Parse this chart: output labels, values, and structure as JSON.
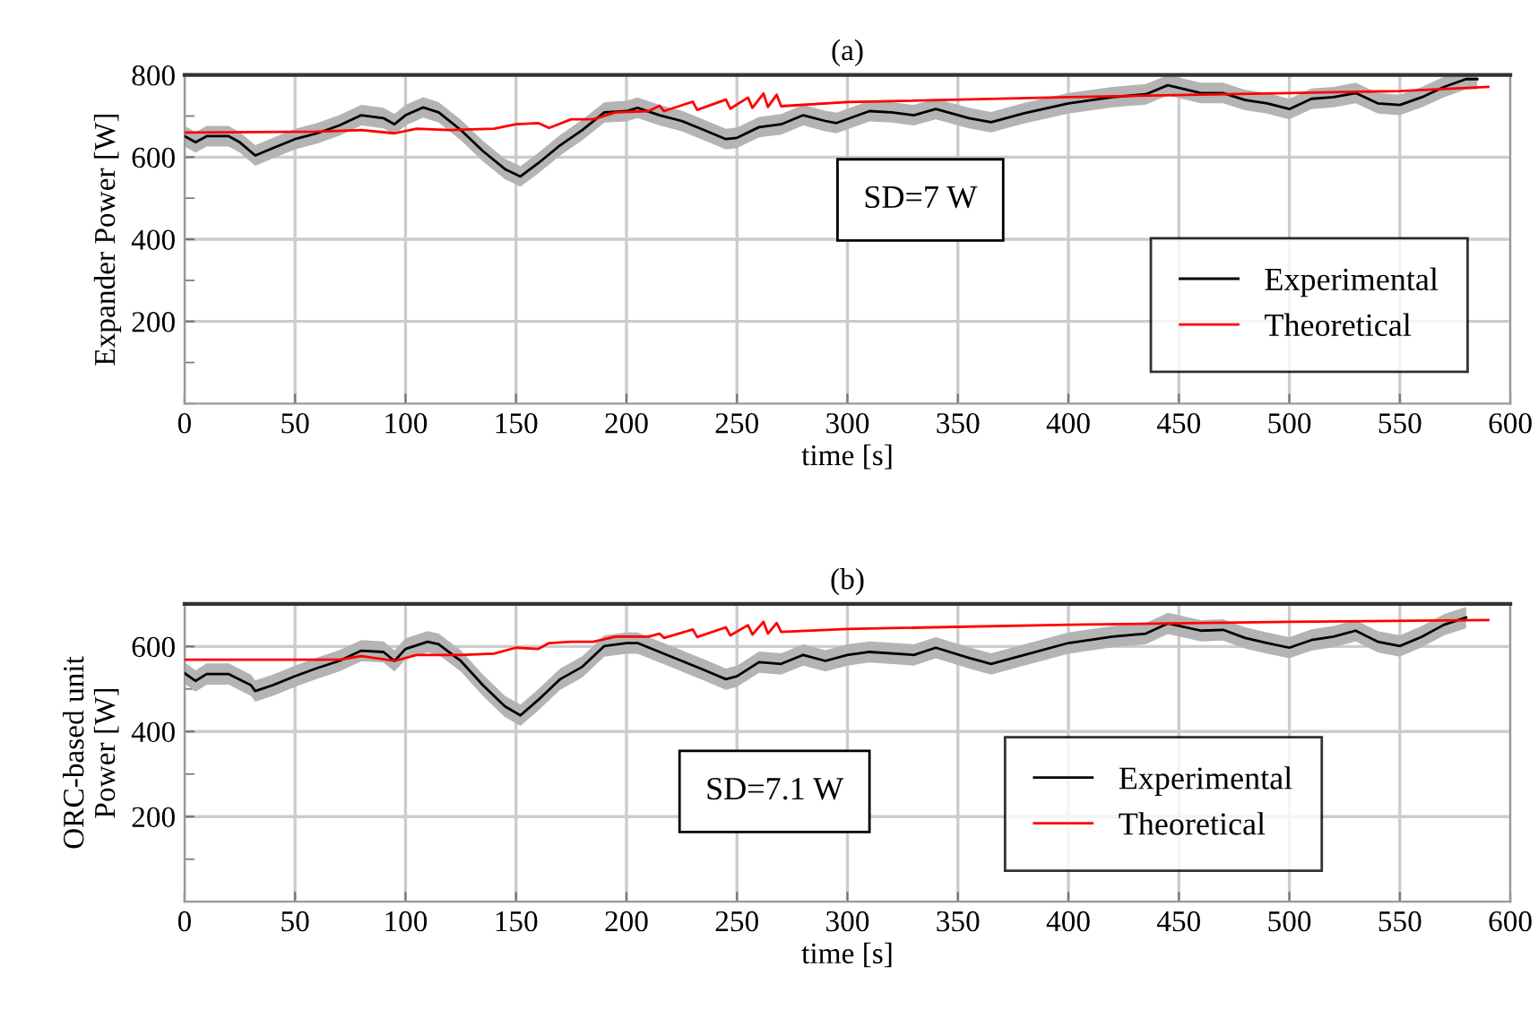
{
  "chart_data": [
    {
      "type": "line",
      "title": "(a)",
      "xlabel": "time [s]",
      "ylabel": "Expander Power [W]",
      "xlim": [
        0,
        600
      ],
      "xticks": [
        0,
        50,
        100,
        150,
        200,
        250,
        300,
        350,
        400,
        450,
        500,
        550,
        600
      ],
      "ylim": [
        0,
        800
      ],
      "yticks": [
        {
          "value": 0,
          "label": null
        },
        {
          "value": 100,
          "label": null
        },
        200,
        {
          "value": 300,
          "label": null
        },
        400,
        {
          "value": 500,
          "label": null
        },
        600,
        {
          "value": 700,
          "label": null
        },
        800
      ],
      "grid": true,
      "legend": "right",
      "annotations": [
        "SD=7 W"
      ],
      "series": [
        {
          "name": "Experimental",
          "color": "#000000",
          "x": [
            0,
            5,
            10,
            20,
            25,
            32,
            40,
            50,
            60,
            70,
            80,
            90,
            95,
            100,
            108,
            115,
            125,
            135,
            145,
            152,
            160,
            170,
            180,
            190,
            200,
            205,
            215,
            225,
            235,
            245,
            250,
            260,
            270,
            280,
            290,
            295,
            310,
            320,
            330,
            340,
            355,
            365,
            380,
            400,
            420,
            435,
            445,
            460,
            470,
            480,
            490,
            500,
            510,
            520,
            530,
            540,
            550,
            560,
            570,
            580,
            585
          ],
          "values": [
            651,
            636,
            651,
            651,
            636,
            604,
            622,
            644,
            658,
            677,
            702,
            695,
            680,
            702,
            721,
            709,
            666,
            615,
            571,
            553,
            585,
            629,
            666,
            709,
            712,
            720,
            702,
            688,
            666,
            644,
            647,
            673,
            680,
            702,
            688,
            683,
            712,
            709,
            702,
            717,
            695,
            685,
            707,
            731,
            746,
            753,
            775,
            756,
            756,
            739,
            731,
            717,
            742,
            746,
            756,
            731,
            727,
            746,
            771,
            790,
            790
          ],
          "lower": [
            626,
            611,
            626,
            626,
            611,
            579,
            597,
            619,
            633,
            652,
            677,
            670,
            655,
            677,
            696,
            684,
            641,
            590,
            546,
            528,
            560,
            604,
            641,
            684,
            687,
            695,
            677,
            663,
            641,
            619,
            622,
            648,
            655,
            677,
            663,
            658,
            687,
            684,
            677,
            692,
            670,
            660,
            682,
            706,
            721,
            728,
            750,
            731,
            731,
            714,
            706,
            692,
            717,
            721,
            731,
            706,
            702,
            721,
            746,
            765,
            765
          ],
          "upper": [
            676,
            661,
            676,
            676,
            661,
            629,
            647,
            669,
            683,
            702,
            727,
            720,
            705,
            727,
            746,
            734,
            691,
            640,
            596,
            578,
            610,
            654,
            691,
            734,
            737,
            745,
            727,
            713,
            691,
            669,
            672,
            698,
            705,
            727,
            713,
            708,
            737,
            734,
            727,
            742,
            720,
            710,
            732,
            756,
            771,
            778,
            800,
            781,
            781,
            764,
            756,
            742,
            767,
            771,
            781,
            756,
            752,
            771,
            796,
            800,
            800
          ]
        },
        {
          "name": "Theoretical",
          "color": "#ff0000",
          "x": [
            0,
            60,
            80,
            95,
            105,
            120,
            140,
            150,
            160,
            165,
            175,
            185,
            195,
            210,
            215,
            217,
            230,
            232,
            245,
            247,
            255,
            257,
            262,
            264,
            268,
            270,
            300,
            400,
            500,
            550,
            590
          ],
          "values": [
            660,
            662,
            666,
            658,
            669,
            666,
            669,
            680,
            683,
            671,
            692,
            692,
            709,
            712,
            725,
            712,
            735,
            715,
            740,
            718,
            745,
            720,
            755,
            722,
            752,
            724,
            734,
            746,
            756,
            761,
            771
          ]
        }
      ]
    },
    {
      "type": "line",
      "title": "(b)",
      "xlabel": "time [s]",
      "ylabel": "ORC-based unit\nPower [W]",
      "xlim": [
        0,
        600
      ],
      "xticks": [
        0,
        50,
        100,
        150,
        200,
        250,
        300,
        350,
        400,
        450,
        500,
        550,
        600
      ],
      "ylim": [
        0,
        700
      ],
      "yticks": [
        {
          "value": 0,
          "label": null
        },
        {
          "value": 100,
          "label": null
        },
        200,
        {
          "value": 300,
          "label": null
        },
        400,
        {
          "value": 500,
          "label": null
        },
        600
      ],
      "grid": true,
      "legend": "lower right",
      "annotations": [
        "SD=7.1 W"
      ],
      "series": [
        {
          "name": "Experimental",
          "color": "#000000",
          "x": [
            0,
            5,
            10,
            20,
            30,
            32,
            40,
            50,
            60,
            70,
            80,
            90,
            95,
            100,
            110,
            115,
            125,
            135,
            145,
            152,
            160,
            170,
            180,
            190,
            200,
            205,
            215,
            225,
            235,
            245,
            250,
            260,
            270,
            280,
            290,
            300,
            310,
            330,
            340,
            355,
            365,
            380,
            400,
            420,
            435,
            445,
            460,
            470,
            480,
            490,
            500,
            510,
            520,
            530,
            540,
            550,
            560,
            570,
            580
          ],
          "values": [
            537,
            519,
            535,
            535,
            509,
            495,
            509,
            530,
            549,
            566,
            590,
            587,
            566,
            594,
            611,
            605,
            566,
            509,
            459,
            438,
            474,
            523,
            552,
            601,
            608,
            608,
            587,
            566,
            545,
            523,
            530,
            563,
            559,
            580,
            566,
            580,
            587,
            580,
            597,
            573,
            559,
            580,
            608,
            623,
            630,
            654,
            637,
            639,
            620,
            608,
            597,
            615,
            623,
            637,
            611,
            601,
            623,
            651,
            668
          ],
          "lower": [
            512,
            494,
            510,
            510,
            484,
            470,
            484,
            505,
            524,
            541,
            565,
            562,
            541,
            569,
            586,
            580,
            541,
            484,
            434,
            413,
            449,
            498,
            527,
            576,
            583,
            583,
            562,
            541,
            520,
            498,
            505,
            538,
            534,
            555,
            541,
            555,
            562,
            555,
            572,
            548,
            534,
            555,
            583,
            598,
            605,
            629,
            612,
            614,
            595,
            583,
            572,
            590,
            598,
            612,
            586,
            576,
            598,
            626,
            643
          ],
          "upper": [
            562,
            544,
            560,
            560,
            534,
            520,
            534,
            555,
            574,
            591,
            615,
            612,
            591,
            619,
            636,
            630,
            591,
            534,
            484,
            463,
            499,
            548,
            577,
            626,
            633,
            633,
            612,
            591,
            570,
            548,
            555,
            588,
            584,
            605,
            591,
            605,
            612,
            605,
            622,
            598,
            584,
            605,
            633,
            648,
            655,
            679,
            662,
            664,
            645,
            633,
            622,
            640,
            648,
            662,
            636,
            626,
            648,
            676,
            693
          ]
        },
        {
          "name": "Theoretical",
          "color": "#ff0000",
          "x": [
            0,
            70,
            80,
            95,
            105,
            125,
            140,
            150,
            160,
            165,
            175,
            185,
            195,
            210,
            215,
            217,
            230,
            232,
            245,
            247,
            255,
            257,
            262,
            264,
            268,
            270,
            300,
            400,
            500,
            590
          ],
          "values": [
            569,
            569,
            577,
            566,
            580,
            580,
            583,
            597,
            594,
            608,
            611,
            611,
            623,
            623,
            630,
            620,
            640,
            622,
            645,
            626,
            650,
            628,
            658,
            630,
            655,
            634,
            641,
            651,
            658,
            662
          ]
        }
      ]
    }
  ]
}
